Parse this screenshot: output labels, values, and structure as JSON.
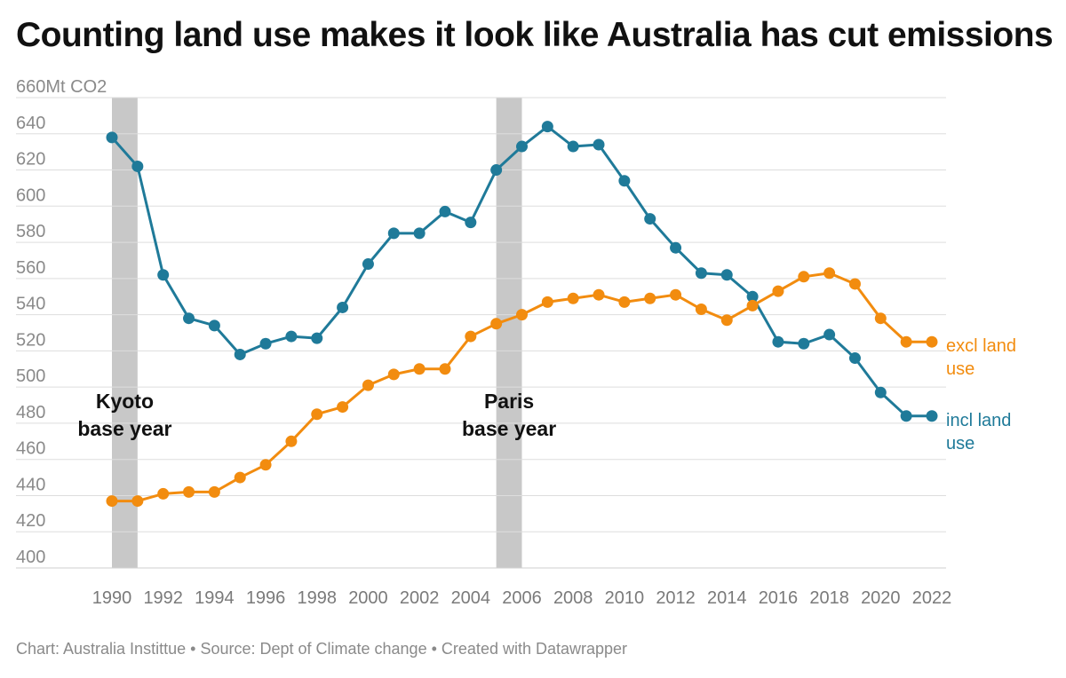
{
  "title": "Counting land use makes it look like Australia has cut emissions",
  "footer": {
    "credit": "Chart: Australia Instittue",
    "separator1": "•",
    "source": "Source: Dept of Climate change",
    "separator2": "•",
    "tool": "Created with Datawrapper"
  },
  "colors": {
    "incl": "#1f7a99",
    "excl": "#f28c0f",
    "band": "#c8c8c8",
    "grid": "#dddddd",
    "axis_text": "#8a8a8a"
  },
  "chart_data": {
    "type": "line",
    "title": "Counting land use makes it look like Australia has cut emissions",
    "ylabel": "Mt CO2",
    "ylim": [
      400,
      660
    ],
    "y_ticks": [
      "660Mt CO2",
      "640",
      "620",
      "600",
      "580",
      "560",
      "540",
      "520",
      "500",
      "480",
      "460",
      "440",
      "420",
      "400"
    ],
    "x_ticks": [
      "1990",
      "1992",
      "1994",
      "1996",
      "1998",
      "2000",
      "2002",
      "2004",
      "2006",
      "2008",
      "2010",
      "2012",
      "2014",
      "2016",
      "2018",
      "2020",
      "2022"
    ],
    "x": [
      1990,
      1991,
      1992,
      1993,
      1994,
      1995,
      1996,
      1997,
      1998,
      1999,
      2000,
      2001,
      2002,
      2003,
      2004,
      2005,
      2006,
      2007,
      2008,
      2009,
      2010,
      2011,
      2012,
      2013,
      2014,
      2015,
      2016,
      2017,
      2018,
      2019,
      2020,
      2021,
      2022
    ],
    "series": [
      {
        "name": "incl land use",
        "color": "#1f7a99",
        "values": [
          638,
          622,
          562,
          538,
          534,
          518,
          524,
          528,
          527,
          544,
          568,
          585,
          585,
          597,
          591,
          620,
          633,
          644,
          633,
          634,
          614,
          593,
          577,
          563,
          562,
          550,
          525,
          524,
          529,
          516,
          497,
          484,
          484
        ]
      },
      {
        "name": "excl land use",
        "color": "#f28c0f",
        "values": [
          437,
          437,
          441,
          442,
          442,
          450,
          457,
          470,
          485,
          489,
          501,
          507,
          510,
          510,
          528,
          535,
          540,
          547,
          549,
          551,
          547,
          549,
          551,
          543,
          537,
          545,
          553,
          561,
          563,
          557,
          538,
          525,
          525
        ]
      }
    ],
    "series_labels": [
      {
        "line1": "excl land",
        "line2": "use",
        "series": "excl land use"
      },
      {
        "line1": "incl land",
        "line2": "use",
        "series": "incl land use"
      }
    ],
    "annotations": [
      {
        "line1": "Kyoto",
        "line2": "base year",
        "band_start": 1990,
        "band_end": 1991
      },
      {
        "line1": "Paris",
        "line2": "base year",
        "band_start": 2005,
        "band_end": 2006
      }
    ],
    "grid": true,
    "legend": "inline labels at right end of lines"
  }
}
